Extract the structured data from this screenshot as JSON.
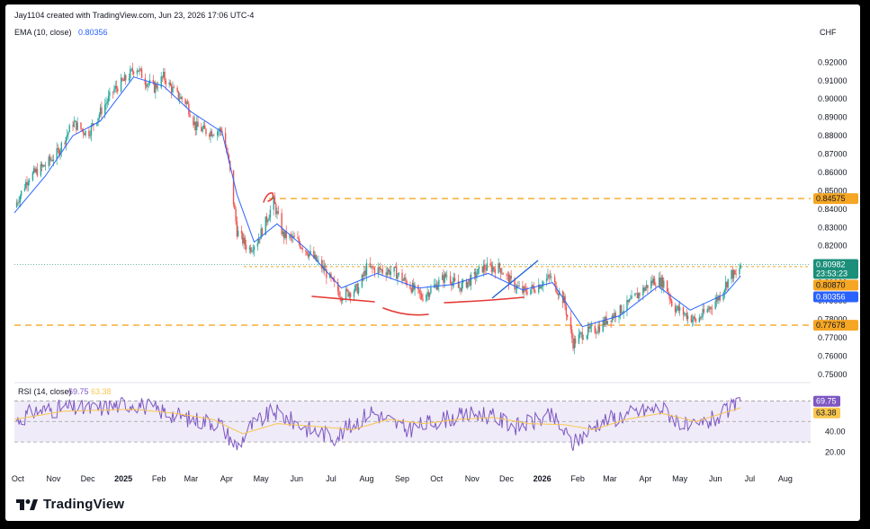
{
  "header": {
    "attribution": "Jay1104 created with TradingView.com, Jun 23, 2026 17:06 UTC-4",
    "ema_label": "EMA (10, close)",
    "ema_value": "0.80356",
    "currency": "CHF"
  },
  "brand": {
    "name": "TradingView"
  },
  "colors": {
    "up": "#26a69a",
    "down": "#ef5350",
    "ema": "#2962ff",
    "level": "#f5a623",
    "rsi": "#7e57c2",
    "rsi_ma": "#f9c74f",
    "current": "#1b8f7a",
    "drawing_red": "#e53935",
    "drawing_blue": "#1e63d6"
  },
  "chart_data": [
    {
      "type": "candlestick",
      "symbol_currency": "CHF",
      "x_ticks": [
        "Oct",
        "Nov",
        "Dec",
        "2025",
        "Feb",
        "Mar",
        "Apr",
        "May",
        "Jun",
        "Jul",
        "Aug",
        "Sep",
        "Oct",
        "Nov",
        "Dec",
        "2026",
        "Feb",
        "Mar",
        "Apr",
        "May",
        "Jun",
        "Jul",
        "Aug"
      ],
      "y_ticks": [
        "0.92000",
        "0.91000",
        "0.90000",
        "0.89000",
        "0.88000",
        "0.87000",
        "0.86000",
        "0.85000",
        "0.84000",
        "0.83000",
        "0.82000",
        "0.81000",
        "0.80000",
        "0.79000",
        "0.78000",
        "0.77000",
        "0.76000",
        "0.75000"
      ],
      "ylim": [
        0.746,
        0.927
      ],
      "close_path": [
        [
          "2024-09-28",
          0.841
        ],
        [
          "2024-10-10",
          0.857
        ],
        [
          "2024-10-25",
          0.864
        ],
        [
          "2024-11-05",
          0.871
        ],
        [
          "2024-11-18",
          0.887
        ],
        [
          "2024-12-01",
          0.881
        ],
        [
          "2024-12-12",
          0.893
        ],
        [
          "2024-12-24",
          0.905
        ],
        [
          "2025-01-05",
          0.912
        ],
        [
          "2025-01-12",
          0.918
        ],
        [
          "2025-01-20",
          0.91
        ],
        [
          "2025-01-28",
          0.906
        ],
        [
          "2025-02-05",
          0.912
        ],
        [
          "2025-02-15",
          0.903
        ],
        [
          "2025-02-25",
          0.898
        ],
        [
          "2025-03-05",
          0.885
        ],
        [
          "2025-03-15",
          0.882
        ],
        [
          "2025-03-28",
          0.883
        ],
        [
          "2025-04-03",
          0.865
        ],
        [
          "2025-04-10",
          0.828
        ],
        [
          "2025-04-20",
          0.818
        ],
        [
          "2025-04-28",
          0.823
        ],
        [
          "2025-05-05",
          0.833
        ],
        [
          "2025-05-12",
          0.844
        ],
        [
          "2025-05-20",
          0.826
        ],
        [
          "2025-06-01",
          0.823
        ],
        [
          "2025-06-15",
          0.814
        ],
        [
          "2025-06-25",
          0.807
        ],
        [
          "2025-07-02",
          0.8
        ],
        [
          "2025-07-10",
          0.793
        ],
        [
          "2025-07-25",
          0.797
        ],
        [
          "2025-08-01",
          0.808
        ],
        [
          "2025-08-10",
          0.807
        ],
        [
          "2025-08-25",
          0.806
        ],
        [
          "2025-09-05",
          0.8
        ],
        [
          "2025-09-18",
          0.792
        ],
        [
          "2025-10-01",
          0.799
        ],
        [
          "2025-10-10",
          0.804
        ],
        [
          "2025-10-20",
          0.797
        ],
        [
          "2025-11-01",
          0.802
        ],
        [
          "2025-11-10",
          0.808
        ],
        [
          "2025-11-25",
          0.808
        ],
        [
          "2025-12-05",
          0.8
        ],
        [
          "2025-12-15",
          0.795
        ],
        [
          "2025-12-25",
          0.797
        ],
        [
          "2026-01-08",
          0.803
        ],
        [
          "2026-01-20",
          0.79
        ],
        [
          "2026-01-28",
          0.767
        ],
        [
          "2026-02-05",
          0.772
        ],
        [
          "2026-02-18",
          0.775
        ],
        [
          "2026-03-01",
          0.781
        ],
        [
          "2026-03-15",
          0.787
        ],
        [
          "2026-03-28",
          0.795
        ],
        [
          "2026-04-08",
          0.801
        ],
        [
          "2026-04-18",
          0.8
        ],
        [
          "2026-04-25",
          0.787
        ],
        [
          "2026-05-05",
          0.783
        ],
        [
          "2026-05-15",
          0.779
        ],
        [
          "2026-05-25",
          0.785
        ],
        [
          "2026-06-05",
          0.793
        ],
        [
          "2026-06-15",
          0.805
        ],
        [
          "2026-06-20",
          0.803
        ],
        [
          "2026-06-23",
          0.8098
        ]
      ],
      "ema_path": [
        [
          "2024-09-28",
          0.838
        ],
        [
          "2024-10-25",
          0.858
        ],
        [
          "2024-11-18",
          0.88
        ],
        [
          "2024-12-12",
          0.888
        ],
        [
          "2025-01-10",
          0.912
        ],
        [
          "2025-02-05",
          0.907
        ],
        [
          "2025-03-01",
          0.893
        ],
        [
          "2025-03-28",
          0.882
        ],
        [
          "2025-04-10",
          0.848
        ],
        [
          "2025-04-25",
          0.822
        ],
        [
          "2025-05-15",
          0.832
        ],
        [
          "2025-06-10",
          0.818
        ],
        [
          "2025-07-10",
          0.797
        ],
        [
          "2025-08-10",
          0.805
        ],
        [
          "2025-09-15",
          0.797
        ],
        [
          "2025-10-15",
          0.799
        ],
        [
          "2025-11-15",
          0.805
        ],
        [
          "2025-12-15",
          0.796
        ],
        [
          "2026-01-10",
          0.8
        ],
        [
          "2026-02-05",
          0.776
        ],
        [
          "2026-03-10",
          0.782
        ],
        [
          "2026-04-12",
          0.798
        ],
        [
          "2026-05-10",
          0.785
        ],
        [
          "2026-06-10",
          0.794
        ],
        [
          "2026-06-23",
          0.8036
        ]
      ],
      "levels": [
        {
          "label": "0.84575",
          "value": 0.84575,
          "style": "dashed"
        },
        {
          "label": "0.80870",
          "value": 0.8087,
          "style": "dashed"
        },
        {
          "label": "0.77678",
          "value": 0.77678,
          "style": "dashed"
        }
      ],
      "last_price": {
        "label": "0.80982",
        "value": 0.80982,
        "countdown": "23:53:23"
      },
      "ema_label_value": {
        "label": "0.80356",
        "value": 0.80356
      }
    },
    {
      "type": "line",
      "title": "RSI (14, close)",
      "rsi_value": "69.75",
      "rsi_ma_value": "63.38",
      "y_ticks": [
        "40.00",
        "20.00"
      ],
      "band": [
        30,
        70
      ],
      "rsi_path": [
        [
          "2024-09-28",
          50
        ],
        [
          "2024-10-15",
          60
        ],
        [
          "2024-11-10",
          63
        ],
        [
          "2024-12-05",
          62
        ],
        [
          "2025-01-10",
          68
        ],
        [
          "2025-02-10",
          58
        ],
        [
          "2025-03-01",
          52
        ],
        [
          "2025-03-25",
          49
        ],
        [
          "2025-04-10",
          25
        ],
        [
          "2025-04-22",
          45
        ],
        [
          "2025-05-12",
          60
        ],
        [
          "2025-06-10",
          43
        ],
        [
          "2025-07-05",
          35
        ],
        [
          "2025-08-05",
          60
        ],
        [
          "2025-09-05",
          42
        ],
        [
          "2025-10-05",
          52
        ],
        [
          "2025-11-10",
          58
        ],
        [
          "2025-12-10",
          45
        ],
        [
          "2026-01-10",
          55
        ],
        [
          "2026-01-28",
          28
        ],
        [
          "2026-02-20",
          50
        ],
        [
          "2026-03-20",
          58
        ],
        [
          "2026-04-15",
          63
        ],
        [
          "2026-05-10",
          42
        ],
        [
          "2026-06-05",
          55
        ],
        [
          "2026-06-23",
          69.75
        ]
      ],
      "rsi_ma_path": [
        [
          "2024-09-28",
          52
        ],
        [
          "2024-11-10",
          60
        ],
        [
          "2025-01-10",
          62
        ],
        [
          "2025-02-15",
          58
        ],
        [
          "2025-03-20",
          52
        ],
        [
          "2025-04-15",
          38
        ],
        [
          "2025-05-15",
          48
        ],
        [
          "2025-06-20",
          45
        ],
        [
          "2025-07-20",
          42
        ],
        [
          "2025-08-20",
          52
        ],
        [
          "2025-09-20",
          48
        ],
        [
          "2025-10-20",
          52
        ],
        [
          "2025-11-20",
          54
        ],
        [
          "2025-12-20",
          48
        ],
        [
          "2026-01-20",
          47
        ],
        [
          "2026-02-15",
          42
        ],
        [
          "2026-03-15",
          52
        ],
        [
          "2026-04-15",
          58
        ],
        [
          "2026-05-15",
          50
        ],
        [
          "2026-06-23",
          63.38
        ]
      ]
    }
  ]
}
